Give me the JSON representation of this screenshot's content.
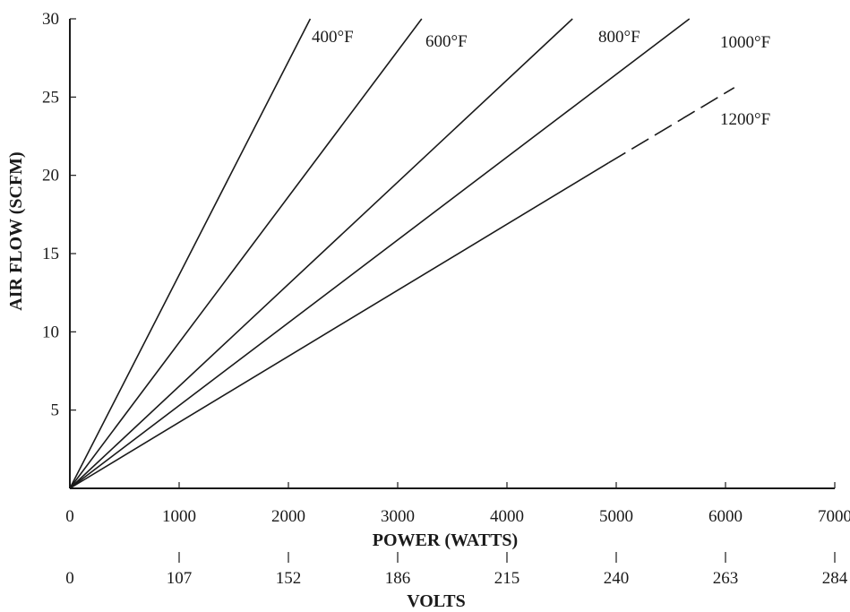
{
  "chart_data": {
    "type": "line",
    "title": "",
    "xlabel": "POWER (WATTS)",
    "ylabel": "AIR FLOW (SCFM)",
    "secondary_xlabel": "VOLTS",
    "xlim": [
      0,
      7000
    ],
    "ylim": [
      0,
      30
    ],
    "x_ticks": [
      0,
      1000,
      2000,
      3000,
      4000,
      5000,
      6000,
      7000
    ],
    "x_tick_labels": [
      "0",
      "1000",
      "2000",
      "3000",
      "4000",
      "5000",
      "6000",
      "7000"
    ],
    "y_ticks": [
      5,
      10,
      15,
      20,
      25,
      30
    ],
    "y_tick_labels": [
      "5",
      "10",
      "15",
      "20",
      "25",
      "30"
    ],
    "secondary_x_ticks": [
      0,
      1000,
      2000,
      3000,
      4000,
      5000,
      6000,
      7000
    ],
    "secondary_x_tick_labels": [
      "0",
      "107",
      "152",
      "186",
      "215",
      "240",
      "263",
      "284"
    ],
    "grid": false,
    "legend": "labels at line ends",
    "series": [
      {
        "name": "400°F",
        "x": [
          0,
          2200
        ],
        "y": [
          0,
          30
        ],
        "style": "solid"
      },
      {
        "name": "600°F",
        "x": [
          0,
          3220
        ],
        "y": [
          0,
          30
        ],
        "style": "solid"
      },
      {
        "name": "800°F",
        "x": [
          0,
          4600
        ],
        "y": [
          0,
          30
        ],
        "style": "solid"
      },
      {
        "name": "1000°F",
        "x": [
          0,
          5670
        ],
        "y": [
          0,
          30
        ],
        "style": "solid"
      },
      {
        "name": "1200°F",
        "x": [
          0,
          4930,
          6080
        ],
        "y": [
          0,
          20.8,
          25.6
        ],
        "style": "solid-then-dashed",
        "dashed_from_index": 1
      }
    ],
    "colors": {
      "line": "#1a1a1a",
      "background": "#ffffff"
    }
  }
}
